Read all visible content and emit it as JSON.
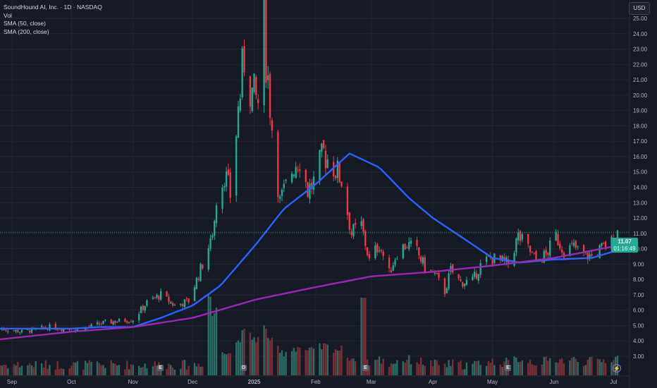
{
  "legend": {
    "title": "SoundHound AI, Inc. · 1D · NASDAQ",
    "vol": "Vol",
    "sma50": "SMA (50, close)",
    "sma200": "SMA (200, close)"
  },
  "currency": "USD",
  "price_tag": {
    "price": "11.07",
    "countdown": "01:16:49"
  },
  "event_markers": [
    {
      "label": "E",
      "month_pos": "Nov"
    },
    {
      "label": "D",
      "month_pos": "Jan"
    },
    {
      "label": "E",
      "month_pos": "Feb-Mar"
    },
    {
      "label": "E",
      "month_pos": "May"
    }
  ],
  "colors": {
    "background": "#161a25",
    "up": "#22ab94",
    "down": "#f23645",
    "up_volume": "#2b6e66",
    "down_volume": "#7c3035",
    "sma50": "#2962ff",
    "sma200": "#9c27b0",
    "grid": "#232632",
    "text": "#d1d4dc"
  },
  "chart_data": {
    "type": "candlestick",
    "title": "SoundHound AI, Inc. · 1D · NASDAQ",
    "y_ticks": [
      3,
      4,
      5,
      6,
      7,
      8,
      9,
      10,
      11,
      12,
      13,
      14,
      15,
      16,
      17,
      18,
      19,
      20,
      21,
      22,
      23,
      24,
      25
    ],
    "y_tick_labels": [
      "3.00",
      "4.00",
      "5.00",
      "6.00",
      "7.00",
      "8.00",
      "9.00",
      "10.00",
      "11.00",
      "12.00",
      "13.00",
      "14.00",
      "15.00",
      "16.00",
      "17.00",
      "18.00",
      "19.00",
      "20.00",
      "21.00",
      "22.00",
      "23.00",
      "24.00",
      "25.00"
    ],
    "ylim": [
      2.6,
      25.6
    ],
    "x_tick_labels": [
      "Sep",
      "Oct",
      "Nov",
      "Dec",
      "2025",
      "Feb",
      "Mar",
      "Apr",
      "May",
      "Jun",
      "Jul"
    ],
    "last_price": 11.07,
    "close_anchors": [
      [
        "Aug 26",
        4.8
      ],
      [
        "Sep 06",
        4.6
      ],
      [
        "Sep 20",
        4.9
      ],
      [
        "Oct 04",
        4.7
      ],
      [
        "Oct 18",
        5.2
      ],
      [
        "Nov 01",
        5.4
      ],
      [
        "Nov 08",
        6.5
      ],
      [
        "Nov 15",
        7.0
      ],
      [
        "Nov 22",
        6.3
      ],
      [
        "Nov 29",
        6.6
      ],
      [
        "Dec 06",
        9.0
      ],
      [
        "Dec 10",
        10.5
      ],
      [
        "Dec 13",
        12.5
      ],
      [
        "Dec 17",
        15.0
      ],
      [
        "Dec 20",
        13.5
      ],
      [
        "Dec 24",
        19.0
      ],
      [
        "Dec 27",
        22.5
      ],
      [
        "Dec 31",
        20.0
      ],
      [
        "Jan 03",
        19.5
      ],
      [
        "Jan 06",
        24.5
      ],
      [
        "Jan 08",
        21.0
      ],
      [
        "Jan 10",
        18.0
      ],
      [
        "Jan 14",
        13.0
      ],
      [
        "Jan 17",
        14.0
      ],
      [
        "Jan 21",
        15.5
      ],
      [
        "Jan 24",
        16.0
      ],
      [
        "Jan 28",
        13.8
      ],
      [
        "Jan 31",
        14.3
      ],
      [
        "Feb 05",
        16.2
      ],
      [
        "Feb 10",
        15.4
      ],
      [
        "Feb 14",
        14.5
      ],
      [
        "Feb 19",
        11.0
      ],
      [
        "Feb 24",
        11.5
      ],
      [
        "Feb 28",
        9.2
      ],
      [
        "Mar 05",
        10.3
      ],
      [
        "Mar 10",
        8.4
      ],
      [
        "Mar 14",
        9.8
      ],
      [
        "Mar 19",
        10.3
      ],
      [
        "Mar 24",
        9.8
      ],
      [
        "Mar 28",
        8.8
      ],
      [
        "Apr 02",
        8.3
      ],
      [
        "Apr 07",
        7.2
      ],
      [
        "Apr 10",
        8.6
      ],
      [
        "Apr 15",
        7.8
      ],
      [
        "Apr 21",
        7.9
      ],
      [
        "Apr 25",
        8.9
      ],
      [
        "Apr 30",
        9.4
      ],
      [
        "May 05",
        9.2
      ],
      [
        "May 09",
        9.0
      ],
      [
        "May 14",
        10.8
      ],
      [
        "May 19",
        10.0
      ],
      [
        "May 23",
        9.2
      ],
      [
        "May 28",
        9.6
      ],
      [
        "Jun 02",
        10.8
      ],
      [
        "Jun 06",
        9.9
      ],
      [
        "Jun 11",
        10.1
      ],
      [
        "Jun 16",
        9.6
      ],
      [
        "Jun 20",
        9.5
      ],
      [
        "Jun 25",
        10.0
      ],
      [
        "Jun 30",
        10.4
      ],
      [
        "Jul 03",
        11.07
      ]
    ],
    "series": [
      {
        "name": "SMA (50, close)",
        "color": "#2962ff",
        "values": [
          [
            "Aug 26",
            4.8
          ],
          [
            "Oct 01",
            4.8
          ],
          [
            "Oct 15",
            4.9
          ],
          [
            "Nov 01",
            4.9
          ],
          [
            "Nov 15",
            5.5
          ],
          [
            "Dec 01",
            6.3
          ],
          [
            "Dec 15",
            7.6
          ],
          [
            "Jan 02",
            10.3
          ],
          [
            "Jan 16",
            12.6
          ],
          [
            "Feb 01",
            14.2
          ],
          [
            "Feb 18",
            16.2
          ],
          [
            "Mar 05",
            15.3
          ],
          [
            "Mar 20",
            13.3
          ],
          [
            "Apr 01",
            12.0
          ],
          [
            "Apr 15",
            10.8
          ],
          [
            "May 01",
            9.4
          ],
          [
            "May 15",
            9.1
          ],
          [
            "Jun 01",
            9.3
          ],
          [
            "Jun 20",
            9.4
          ],
          [
            "Jul 03",
            9.9
          ]
        ]
      },
      {
        "name": "SMA (200, close)",
        "color": "#9c27b0",
        "values": [
          [
            "Aug 26",
            4.1
          ],
          [
            "Oct 01",
            4.6
          ],
          [
            "Nov 01",
            4.9
          ],
          [
            "Dec 01",
            5.5
          ],
          [
            "Jan 02",
            6.7
          ],
          [
            "Feb 01",
            7.5
          ],
          [
            "Mar 01",
            8.2
          ],
          [
            "Apr 01",
            8.5
          ],
          [
            "May 01",
            8.9
          ],
          [
            "Jun 01",
            9.4
          ],
          [
            "Jul 03",
            10.2
          ]
        ]
      }
    ]
  }
}
